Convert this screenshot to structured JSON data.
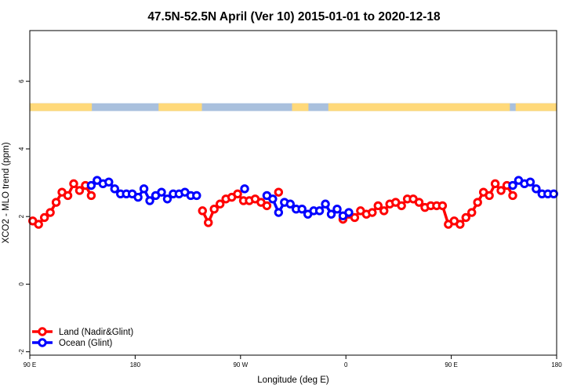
{
  "chart_data": {
    "type": "line",
    "title": "47.5N-52.5N April (Ver 10)   2015-01-01 to 2020-12-18",
    "xlabel": "Longitude (deg E)",
    "ylabel": "XCO2 - MLO trend (ppm)",
    "xlim": [
      90,
      540
    ],
    "ylim": [
      -2.1,
      7.5
    ],
    "x_ticks": [
      {
        "value": 90,
        "label": "90 E"
      },
      {
        "value": 180,
        "label": "180"
      },
      {
        "value": 270,
        "label": "90 W"
      },
      {
        "value": 360,
        "label": "0"
      },
      {
        "value": 450,
        "label": "90 E"
      },
      {
        "value": 540,
        "label": "180"
      }
    ],
    "y_ticks": [
      {
        "value": -2,
        "label": "-2"
      },
      {
        "value": 0,
        "label": "0"
      },
      {
        "value": 2,
        "label": "2"
      },
      {
        "value": 4,
        "label": "4"
      },
      {
        "value": 6,
        "label": "6"
      }
    ],
    "land_sea_strip": {
      "y_range": [
        5.12,
        5.35
      ],
      "land_color": "#FFD97A",
      "ocean_color": "#A9C0DD",
      "land_segments": [
        [
          90,
          143
        ],
        [
          200,
          237
        ],
        [
          314,
          328
        ],
        [
          345,
          500
        ],
        [
          505,
          540
        ]
      ]
    },
    "legend": {
      "position": "bottom-left"
    },
    "series": [
      {
        "name": "Land (Nadir&Glint)",
        "color": "#ff0000",
        "points": [
          [
            [
              92.5,
              1.87
            ],
            [
              97.5,
              1.77
            ],
            [
              102.5,
              1.97
            ],
            [
              107.5,
              2.12
            ],
            [
              112.5,
              2.42
            ],
            [
              117.5,
              2.72
            ],
            [
              122.5,
              2.62
            ],
            [
              127.5,
              2.97
            ],
            [
              132.5,
              2.77
            ],
            [
              137.5,
              2.92
            ],
            [
              142.5,
              2.62
            ]
          ],
          [
            [
              237.5,
              2.17
            ],
            [
              242.5,
              1.82
            ],
            [
              247.5,
              2.22
            ],
            [
              252.5,
              2.37
            ],
            [
              257.5,
              2.52
            ],
            [
              262.5,
              2.57
            ],
            [
              267.5,
              2.67
            ],
            [
              272.5,
              2.47
            ],
            [
              277.5,
              2.47
            ],
            [
              282.5,
              2.52
            ],
            [
              287.5,
              2.42
            ],
            [
              292.5,
              2.32
            ]
          ],
          [
            [
              302.5,
              2.72
            ]
          ],
          [
            [
              357.5,
              1.92
            ],
            [
              362.5,
              2.07
            ],
            [
              367.5,
              1.97
            ],
            [
              372.5,
              2.17
            ],
            [
              377.5,
              2.07
            ],
            [
              382.5,
              2.12
            ],
            [
              387.5,
              2.32
            ],
            [
              392.5,
              2.17
            ],
            [
              397.5,
              2.37
            ],
            [
              402.5,
              2.42
            ],
            [
              407.5,
              2.32
            ],
            [
              412.5,
              2.52
            ],
            [
              417.5,
              2.52
            ],
            [
              422.5,
              2.42
            ],
            [
              427.5,
              2.27
            ],
            [
              432.5,
              2.32
            ],
            [
              437.5,
              2.32
            ],
            [
              442.5,
              2.32
            ],
            [
              447.5,
              1.77
            ],
            [
              452.5,
              1.87
            ],
            [
              457.5,
              1.77
            ],
            [
              462.5,
              1.97
            ],
            [
              467.5,
              2.12
            ],
            [
              472.5,
              2.42
            ],
            [
              477.5,
              2.72
            ],
            [
              482.5,
              2.62
            ],
            [
              487.5,
              2.97
            ],
            [
              492.5,
              2.77
            ],
            [
              497.5,
              2.92
            ],
            [
              502.5,
              2.62
            ]
          ]
        ]
      },
      {
        "name": "Ocean (Glint)",
        "color": "#0000ff",
        "points": [
          [
            [
              142.5,
              2.92
            ],
            [
              147.5,
              3.07
            ],
            [
              152.5,
              2.97
            ],
            [
              157.5,
              3.02
            ],
            [
              162.5,
              2.82
            ],
            [
              167.5,
              2.67
            ],
            [
              172.5,
              2.67
            ],
            [
              177.5,
              2.67
            ],
            [
              182.5,
              2.57
            ],
            [
              187.5,
              2.82
            ],
            [
              192.5,
              2.47
            ],
            [
              197.5,
              2.62
            ],
            [
              202.5,
              2.72
            ],
            [
              207.5,
              2.52
            ],
            [
              212.5,
              2.67
            ],
            [
              217.5,
              2.67
            ],
            [
              222.5,
              2.72
            ],
            [
              227.5,
              2.62
            ],
            [
              232.5,
              2.62
            ]
          ],
          [
            [
              273.5,
              2.82
            ]
          ],
          [
            [
              292.5,
              2.62
            ],
            [
              297.5,
              2.52
            ],
            [
              302.5,
              2.12
            ],
            [
              307.5,
              2.42
            ],
            [
              312.5,
              2.37
            ],
            [
              317.5,
              2.22
            ],
            [
              322.5,
              2.22
            ],
            [
              327.5,
              2.07
            ],
            [
              332.5,
              2.17
            ],
            [
              337.5,
              2.17
            ],
            [
              342.5,
              2.37
            ],
            [
              347.5,
              2.07
            ],
            [
              352.5,
              2.22
            ],
            [
              357.5,
              2.02
            ],
            [
              362.5,
              2.12
            ]
          ],
          [
            [
              502.5,
              2.92
            ],
            [
              507.5,
              3.07
            ],
            [
              512.5,
              2.97
            ],
            [
              517.5,
              3.02
            ],
            [
              522.5,
              2.82
            ],
            [
              527.5,
              2.67
            ],
            [
              532.5,
              2.67
            ],
            [
              537.5,
              2.67
            ]
          ]
        ]
      }
    ]
  }
}
